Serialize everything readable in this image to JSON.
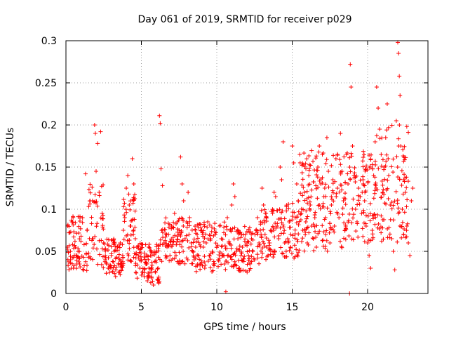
{
  "chart_data": {
    "type": "scatter",
    "title": "Day 061 of 2019, SRMTID for receiver p029",
    "xlabel": "GPS time / hours",
    "ylabel": "SRMTID / TECUs",
    "xlim": [
      0,
      24
    ],
    "ylim": [
      0,
      0.3
    ],
    "x_ticks": [
      0,
      5,
      10,
      15,
      20
    ],
    "x_tick_labels": [
      "0",
      "5",
      "10",
      "15",
      "20"
    ],
    "y_ticks": [
      0,
      0.05,
      0.1,
      0.15,
      0.2,
      0.25,
      0.3
    ],
    "y_tick_labels": [
      "0",
      "0.05",
      "0.1",
      "0.15",
      "0.2",
      "0.25",
      "0.3"
    ],
    "grid": true,
    "marker": "plus",
    "color": "#ff0000",
    "series": [
      {
        "name": "SRMTID",
        "points": [
          [
            0.1,
            0.055
          ],
          [
            0.2,
            0.072
          ],
          [
            0.3,
            0.04
          ],
          [
            0.4,
            0.085
          ],
          [
            0.5,
            0.03
          ],
          [
            0.6,
            0.062
          ],
          [
            0.7,
            0.045
          ],
          [
            0.8,
            0.05
          ],
          [
            0.9,
            0.035
          ],
          [
            1.0,
            0.068
          ],
          [
            1.1,
            0.09
          ],
          [
            1.2,
            0.058
          ],
          [
            1.3,
            0.142
          ],
          [
            1.4,
            0.075
          ],
          [
            1.5,
            0.048
          ],
          [
            1.6,
            0.11
          ],
          [
            1.7,
            0.083
          ],
          [
            1.8,
            0.065
          ],
          [
            1.9,
            0.2
          ],
          [
            1.95,
            0.19
          ],
          [
            2.0,
            0.145
          ],
          [
            2.1,
            0.178
          ],
          [
            2.2,
            0.12
          ],
          [
            2.3,
            0.192
          ],
          [
            2.4,
            0.095
          ],
          [
            2.5,
            0.06
          ],
          [
            2.6,
            0.04
          ],
          [
            2.7,
            0.035
          ],
          [
            2.8,
            0.03
          ],
          [
            2.9,
            0.025
          ],
          [
            3.0,
            0.045
          ],
          [
            3.1,
            0.038
          ],
          [
            3.2,
            0.05
          ],
          [
            3.3,
            0.028
          ],
          [
            3.4,
            0.055
          ],
          [
            3.5,
            0.042
          ],
          [
            3.6,
            0.06
          ],
          [
            3.7,
            0.035
          ],
          [
            3.8,
            0.075
          ],
          [
            3.9,
            0.09
          ],
          [
            4.0,
            0.125
          ],
          [
            4.1,
            0.14
          ],
          [
            4.2,
            0.105
          ],
          [
            4.3,
            0.08
          ],
          [
            4.4,
            0.16
          ],
          [
            4.5,
            0.13
          ],
          [
            4.6,
            0.065
          ],
          [
            4.7,
            0.055
          ],
          [
            4.8,
            0.045
          ],
          [
            4.9,
            0.03
          ],
          [
            5.0,
            0.04
          ],
          [
            5.1,
            0.025
          ],
          [
            5.2,
            0.02
          ],
          [
            5.3,
            0.035
          ],
          [
            5.4,
            0.015
          ],
          [
            5.5,
            0.03
          ],
          [
            5.6,
            0.045
          ],
          [
            5.7,
            0.025
          ],
          [
            5.8,
            0.01
          ],
          [
            5.9,
            0.038
          ],
          [
            6.0,
            0.05
          ],
          [
            6.1,
            0.03
          ],
          [
            6.2,
            0.211
          ],
          [
            6.25,
            0.202
          ],
          [
            6.3,
            0.148
          ],
          [
            6.4,
            0.128
          ],
          [
            6.5,
            0.06
          ],
          [
            6.6,
            0.045
          ],
          [
            6.7,
            0.055
          ],
          [
            6.8,
            0.07
          ],
          [
            6.9,
            0.062
          ],
          [
            7.0,
            0.08
          ],
          [
            7.1,
            0.058
          ],
          [
            7.2,
            0.095
          ],
          [
            7.3,
            0.045
          ],
          [
            7.4,
            0.068
          ],
          [
            7.5,
            0.075
          ],
          [
            7.6,
            0.162
          ],
          [
            7.7,
            0.13
          ],
          [
            7.8,
            0.11
          ],
          [
            7.9,
            0.065
          ],
          [
            8.0,
            0.085
          ],
          [
            8.1,
            0.12
          ],
          [
            8.2,
            0.09
          ],
          [
            8.3,
            0.06
          ],
          [
            8.4,
            0.05
          ],
          [
            8.5,
            0.04
          ],
          [
            8.6,
            0.055
          ],
          [
            8.7,
            0.07
          ],
          [
            8.8,
            0.045
          ],
          [
            8.9,
            0.035
          ],
          [
            9.0,
            0.075
          ],
          [
            9.1,
            0.055
          ],
          [
            9.2,
            0.03
          ],
          [
            9.3,
            0.06
          ],
          [
            9.4,
            0.085
          ],
          [
            9.5,
            0.045
          ],
          [
            9.6,
            0.065
          ],
          [
            9.7,
            0.05
          ],
          [
            9.8,
            0.038
          ],
          [
            9.9,
            0.07
          ],
          [
            10.0,
            0.055
          ],
          [
            10.1,
            0.04
          ],
          [
            10.2,
            0.08
          ],
          [
            10.3,
            0.065
          ],
          [
            10.4,
            0.045
          ],
          [
            10.5,
            0.035
          ],
          [
            10.6,
            0.002
          ],
          [
            10.7,
            0.09
          ],
          [
            10.8,
            0.06
          ],
          [
            10.9,
            0.075
          ],
          [
            11.0,
            0.105
          ],
          [
            11.1,
            0.13
          ],
          [
            11.2,
            0.115
          ],
          [
            11.3,
            0.05
          ],
          [
            11.4,
            0.065
          ],
          [
            11.5,
            0.03
          ],
          [
            11.6,
            0.045
          ],
          [
            11.7,
            0.055
          ],
          [
            11.8,
            0.038
          ],
          [
            11.9,
            0.07
          ],
          [
            12.0,
            0.06
          ],
          [
            12.1,
            0.045
          ],
          [
            12.2,
            0.035
          ],
          [
            12.3,
            0.065
          ],
          [
            12.4,
            0.05
          ],
          [
            12.5,
            0.04
          ],
          [
            12.6,
            0.075
          ],
          [
            12.7,
            0.09
          ],
          [
            12.8,
            0.06
          ],
          [
            12.9,
            0.085
          ],
          [
            13.0,
            0.125
          ],
          [
            13.1,
            0.105
          ],
          [
            13.2,
            0.07
          ],
          [
            13.3,
            0.055
          ],
          [
            13.4,
            0.045
          ],
          [
            13.5,
            0.06
          ],
          [
            13.6,
            0.075
          ],
          [
            13.7,
            0.095
          ],
          [
            13.8,
            0.12
          ],
          [
            13.9,
            0.115
          ],
          [
            14.0,
            0.08
          ],
          [
            14.1,
            0.065
          ],
          [
            14.2,
            0.15
          ],
          [
            14.3,
            0.135
          ],
          [
            14.4,
            0.18
          ],
          [
            14.5,
            0.06
          ],
          [
            14.6,
            0.05
          ],
          [
            14.7,
            0.065
          ],
          [
            14.8,
            0.085
          ],
          [
            14.9,
            0.07
          ],
          [
            15.0,
            0.175
          ],
          [
            15.1,
            0.155
          ],
          [
            15.2,
            0.09
          ],
          [
            15.3,
            0.13
          ],
          [
            15.4,
            0.11
          ],
          [
            15.5,
            0.165
          ],
          [
            15.6,
            0.095
          ],
          [
            15.7,
            0.075
          ],
          [
            15.8,
            0.12
          ],
          [
            15.9,
            0.085
          ],
          [
            16.0,
            0.06
          ],
          [
            16.1,
            0.14
          ],
          [
            16.2,
            0.105
          ],
          [
            16.3,
            0.08
          ],
          [
            16.4,
            0.065
          ],
          [
            16.5,
            0.09
          ],
          [
            16.6,
            0.055
          ],
          [
            16.7,
            0.15
          ],
          [
            16.8,
            0.175
          ],
          [
            16.9,
            0.13
          ],
          [
            17.0,
            0.165
          ],
          [
            17.1,
            0.115
          ],
          [
            17.2,
            0.09
          ],
          [
            17.3,
            0.185
          ],
          [
            17.4,
            0.145
          ],
          [
            17.5,
            0.06
          ],
          [
            17.6,
            0.105
          ],
          [
            17.7,
            0.135
          ],
          [
            17.8,
            0.08
          ],
          [
            17.9,
            0.16
          ],
          [
            18.0,
            0.125
          ],
          [
            18.1,
            0.09
          ],
          [
            18.2,
            0.19
          ],
          [
            18.3,
            0.145
          ],
          [
            18.4,
            0.11
          ],
          [
            18.5,
            0.075
          ],
          [
            18.6,
            0.165
          ],
          [
            18.7,
            0.13
          ],
          [
            18.8,
            0.0
          ],
          [
            18.85,
            0.272
          ],
          [
            18.9,
            0.245
          ],
          [
            19.0,
            0.175
          ],
          [
            19.1,
            0.14
          ],
          [
            19.2,
            0.1
          ],
          [
            19.3,
            0.085
          ],
          [
            19.4,
            0.125
          ],
          [
            19.5,
            0.115
          ],
          [
            19.6,
            0.095
          ],
          [
            19.7,
            0.135
          ],
          [
            19.8,
            0.11
          ],
          [
            19.9,
            0.08
          ],
          [
            20.0,
            0.06
          ],
          [
            20.1,
            0.045
          ],
          [
            20.2,
            0.03
          ],
          [
            20.3,
            0.075
          ],
          [
            20.4,
            0.14
          ],
          [
            20.5,
            0.18
          ],
          [
            20.6,
            0.245
          ],
          [
            20.7,
            0.22
          ],
          [
            20.8,
            0.195
          ],
          [
            20.9,
            0.165
          ],
          [
            21.0,
            0.12
          ],
          [
            21.1,
            0.15
          ],
          [
            21.2,
            0.185
          ],
          [
            21.3,
            0.225
          ],
          [
            21.4,
            0.14
          ],
          [
            21.5,
            0.105
          ],
          [
            21.6,
            0.065
          ],
          [
            21.7,
            0.05
          ],
          [
            21.8,
            0.028
          ],
          [
            21.9,
            0.205
          ],
          [
            22.0,
            0.298
          ],
          [
            22.05,
            0.285
          ],
          [
            22.1,
            0.258
          ],
          [
            22.15,
            0.235
          ],
          [
            22.2,
            0.175
          ],
          [
            22.3,
            0.1
          ],
          [
            22.4,
            0.135
          ],
          [
            22.5,
            0.12
          ],
          [
            22.6,
            0.08
          ],
          [
            22.7,
            0.06
          ],
          [
            22.8,
            0.045
          ],
          [
            22.9,
            0.11
          ],
          [
            23.0,
            0.125
          ]
        ]
      }
    ],
    "dense_bands": [
      {
        "x": [
          0.0,
          1.5
        ],
        "y": [
          0.025,
          0.095
        ],
        "n": 70
      },
      {
        "x": [
          1.5,
          2.5
        ],
        "y": [
          0.03,
          0.13
        ],
        "n": 45
      },
      {
        "x": [
          2.5,
          3.8
        ],
        "y": [
          0.02,
          0.065
        ],
        "n": 70
      },
      {
        "x": [
          3.8,
          4.6
        ],
        "y": [
          0.03,
          0.12
        ],
        "n": 45
      },
      {
        "x": [
          4.6,
          6.2
        ],
        "y": [
          0.012,
          0.06
        ],
        "n": 90
      },
      {
        "x": [
          6.2,
          8.5
        ],
        "y": [
          0.035,
          0.09
        ],
        "n": 100
      },
      {
        "x": [
          8.5,
          10.8
        ],
        "y": [
          0.025,
          0.085
        ],
        "n": 100
      },
      {
        "x": [
          10.8,
          12.8
        ],
        "y": [
          0.025,
          0.08
        ],
        "n": 90
      },
      {
        "x": [
          12.8,
          14.5
        ],
        "y": [
          0.04,
          0.1
        ],
        "n": 75
      },
      {
        "x": [
          14.5,
          15.5
        ],
        "y": [
          0.04,
          0.11
        ],
        "n": 45
      },
      {
        "x": [
          15.5,
          18.5
        ],
        "y": [
          0.05,
          0.17
        ],
        "n": 150
      },
      {
        "x": [
          18.5,
          20.5
        ],
        "y": [
          0.06,
          0.17
        ],
        "n": 100
      },
      {
        "x": [
          20.5,
          22.7
        ],
        "y": [
          0.06,
          0.2
        ],
        "n": 110
      }
    ]
  }
}
